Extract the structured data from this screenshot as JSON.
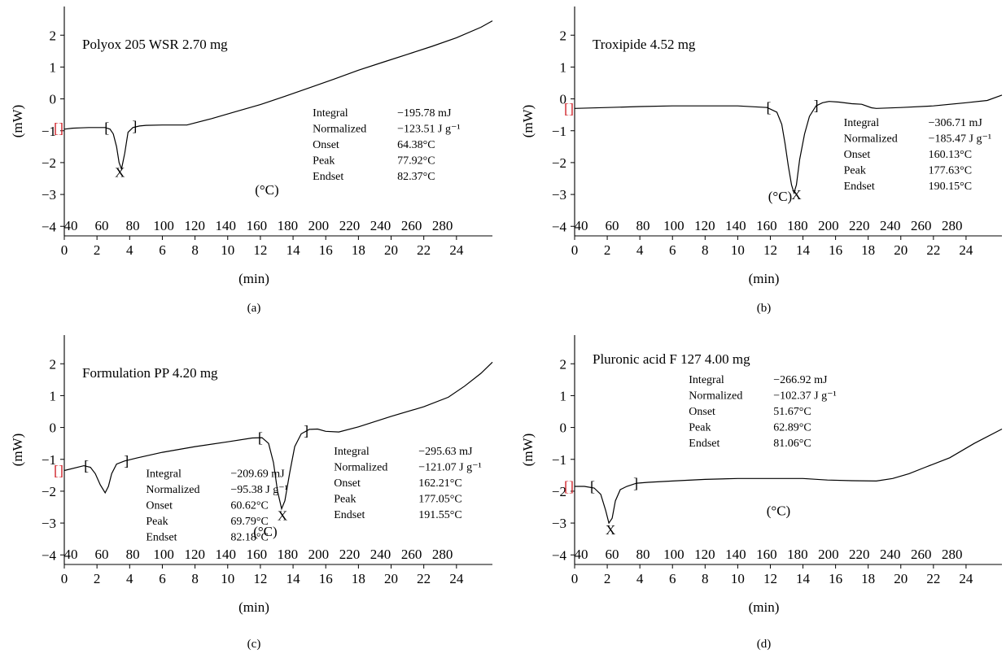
{
  "figure": {
    "x_axis_label": "(min)",
    "y_axis_label": "(mW)",
    "temp_axis_label": "(°C)",
    "peak_marker": "X"
  },
  "chart_data": [
    {
      "panel": "a",
      "caption": "(a)",
      "type": "line",
      "title": "Polyox 205 WSR  2.70 mg",
      "xlabel": "(min)",
      "ylabel": "(mW)",
      "xlim": [
        0,
        26.2
      ],
      "ylim": [
        -4.3,
        2.9
      ],
      "x_ticks": [
        "0",
        "2",
        "4",
        "6",
        "8",
        "10",
        "12",
        "14",
        "16",
        "18",
        "20",
        "22",
        "24"
      ],
      "y_ticks": [
        "2",
        "1",
        "0",
        "−1",
        "−2",
        "−3",
        "−4"
      ],
      "temp_ticks": [
        "40",
        "60",
        "80",
        "100",
        "120",
        "140",
        "160",
        "180",
        "200",
        "220",
        "240",
        "260",
        "280"
      ],
      "temp_label": "(°C)",
      "series": [
        {
          "x": [
            0,
            0.5,
            1,
            1.5,
            2,
            2.5,
            2.8,
            3,
            3.2,
            3.35,
            3.5,
            3.7,
            3.9,
            4.2,
            4.6,
            5,
            6,
            7.5,
            9,
            10.5,
            12,
            13.5,
            15,
            16.5,
            18,
            19.5,
            21,
            22.5,
            24,
            25.5,
            26.2
          ],
          "y": [
            -0.95,
            -0.92,
            -0.91,
            -0.9,
            -0.9,
            -0.9,
            -0.95,
            -1.1,
            -1.5,
            -2.0,
            -2.2,
            -1.7,
            -1.05,
            -0.9,
            -0.85,
            -0.83,
            -0.82,
            -0.82,
            -0.62,
            -0.4,
            -0.18,
            0.08,
            0.35,
            0.62,
            0.9,
            1.15,
            1.4,
            1.65,
            1.92,
            2.25,
            2.45
          ]
        }
      ],
      "integration_brackets": [
        {
          "x": 2.6,
          "y": -0.9,
          "glyph": "["
        },
        {
          "x": 4.3,
          "y": -0.85,
          "glyph": "]"
        }
      ],
      "peak_label_pos": {
        "x": 3.4,
        "y": -2.25
      },
      "temp_label_pos": {
        "x": 12.4,
        "y": -2.85
      },
      "start_marker": {
        "x": 0,
        "y": -0.92
      },
      "stats_pos": {
        "x": 15.2,
        "y": -0.55
      },
      "stats": [
        {
          "label": "Integral",
          "value": "−195.78 mJ"
        },
        {
          "label": "Normalized",
          "value": "−123.51 J g⁻¹"
        },
        {
          "label": "Onset",
          "value": "64.38°C"
        },
        {
          "label": "Peak",
          "value": "77.92°C"
        },
        {
          "label": "Endset",
          "value": "82.37°C"
        }
      ]
    },
    {
      "panel": "b",
      "caption": "(b)",
      "type": "line",
      "title": "Troxipide  4.52 mg",
      "xlabel": "(min)",
      "ylabel": "(mW)",
      "xlim": [
        0,
        26.2
      ],
      "ylim": [
        -4.3,
        2.9
      ],
      "x_ticks": [
        "0",
        "2",
        "4",
        "6",
        "8",
        "10",
        "12",
        "14",
        "16",
        "18",
        "20",
        "22",
        "24"
      ],
      "y_ticks": [
        "2",
        "1",
        "0",
        "−1",
        "−2",
        "−3",
        "−4"
      ],
      "temp_ticks": [
        "40",
        "60",
        "80",
        "100",
        "120",
        "140",
        "160",
        "180",
        "200",
        "220",
        "240",
        "260",
        "280"
      ],
      "temp_label": "(°C)",
      "series": [
        {
          "x": [
            0,
            2,
            4,
            6,
            8,
            10,
            11.8,
            12.4,
            12.7,
            12.9,
            13.1,
            13.3,
            13.45,
            13.6,
            13.8,
            14.1,
            14.4,
            14.8,
            15.2,
            15.6,
            16.2,
            17,
            17.6,
            18.2,
            18.5,
            20,
            22,
            24,
            25.3,
            26.2
          ],
          "y": [
            -0.3,
            -0.27,
            -0.24,
            -0.22,
            -0.22,
            -0.22,
            -0.27,
            -0.42,
            -0.8,
            -1.4,
            -2.1,
            -2.7,
            -2.95,
            -2.7,
            -1.9,
            -1.1,
            -0.55,
            -0.22,
            -0.12,
            -0.08,
            -0.1,
            -0.15,
            -0.17,
            -0.28,
            -0.3,
            -0.27,
            -0.22,
            -0.12,
            -0.05,
            0.12
          ]
        }
      ],
      "integration_brackets": [
        {
          "x": 11.9,
          "y": -0.27,
          "glyph": "["
        },
        {
          "x": 14.8,
          "y": -0.2,
          "glyph": "]"
        }
      ],
      "peak_label_pos": {
        "x": 13.6,
        "y": -2.95
      },
      "temp_label_pos": {
        "x": 12.6,
        "y": -3.05
      },
      "start_marker": {
        "x": 0,
        "y": -0.3
      },
      "stats_pos": {
        "x": 16.5,
        "y": -0.85
      },
      "stats": [
        {
          "label": "Integral",
          "value": "−306.71 mJ"
        },
        {
          "label": "Normalized",
          "value": "−185.47 J g⁻¹"
        },
        {
          "label": "Onset",
          "value": "160.13°C"
        },
        {
          "label": "Peak",
          "value": "177.63°C"
        },
        {
          "label": "Endset",
          "value": "190.15°C"
        }
      ]
    },
    {
      "panel": "c",
      "caption": "(c)",
      "type": "line",
      "title": "Formulation PP 4.20 mg",
      "xlabel": "(min)",
      "ylabel": "(mW)",
      "xlim": [
        0,
        26.2
      ],
      "ylim": [
        -4.3,
        2.9
      ],
      "x_ticks": [
        "0",
        "2",
        "4",
        "6",
        "8",
        "10",
        "12",
        "14",
        "16",
        "18",
        "20",
        "22",
        "24"
      ],
      "y_ticks": [
        "2",
        "1",
        "0",
        "−1",
        "−2",
        "−3",
        "−4"
      ],
      "temp_ticks": [
        "40",
        "60",
        "80",
        "100",
        "120",
        "140",
        "160",
        "180",
        "200",
        "220",
        "240",
        "260",
        "280"
      ],
      "temp_label": "(°C)",
      "series": [
        {
          "x": [
            0,
            1.2,
            1.6,
            1.9,
            2.2,
            2.5,
            2.7,
            2.9,
            3.2,
            3.7,
            4.5,
            6,
            8,
            10,
            11.5,
            12.1,
            12.5,
            12.8,
            13.05,
            13.3,
            13.5,
            13.8,
            14.1,
            14.5,
            15,
            15.5,
            16,
            16.8,
            18,
            20,
            22,
            23.5,
            24.5,
            25.5,
            26.2
          ],
          "y": [
            -1.35,
            -1.2,
            -1.25,
            -1.45,
            -1.8,
            -2.05,
            -1.85,
            -1.45,
            -1.15,
            -1.05,
            -0.95,
            -0.78,
            -0.6,
            -0.45,
            -0.33,
            -0.32,
            -0.5,
            -1.1,
            -2.0,
            -2.55,
            -2.3,
            -1.4,
            -0.6,
            -0.2,
            -0.06,
            -0.05,
            -0.12,
            -0.14,
            0.02,
            0.35,
            0.65,
            0.95,
            1.3,
            1.7,
            2.05
          ]
        }
      ],
      "integration_brackets": [
        {
          "x": 1.35,
          "y": -1.2,
          "glyph": "["
        },
        {
          "x": 3.8,
          "y": -1.05,
          "glyph": "]"
        },
        {
          "x": 12.0,
          "y": -0.32,
          "glyph": "["
        },
        {
          "x": 14.8,
          "y": -0.1,
          "glyph": "]"
        }
      ],
      "peak_label_pos": {
        "x": 13.35,
        "y": -2.7
      },
      "temp_label_pos": {
        "x": 12.3,
        "y": -3.25
      },
      "start_marker": {
        "x": 0,
        "y": -1.35
      },
      "stats_pos": {
        "x": 5.0,
        "y": -1.55
      },
      "stats": [
        {
          "label": "Integral",
          "value": "−209.69 mJ"
        },
        {
          "label": "Normalized",
          "value": "−95.38 J g⁻¹"
        },
        {
          "label": "Onset",
          "value": "60.62°C"
        },
        {
          "label": "Peak",
          "value": "69.79°C"
        },
        {
          "label": "Endset",
          "value": "82.18°C"
        }
      ],
      "stats_pos_2": {
        "x": 16.5,
        "y": -0.85
      },
      "stats_2": [
        {
          "label": "Integral",
          "value": "−295.63 mJ"
        },
        {
          "label": "Normalized",
          "value": "−121.07 J g⁻¹"
        },
        {
          "label": "Onset",
          "value": "162.21°C"
        },
        {
          "label": "Peak",
          "value": "177.05°C"
        },
        {
          "label": "Endset",
          "value": "191.55°C"
        }
      ]
    },
    {
      "panel": "d",
      "caption": "(d)",
      "type": "line",
      "title": "Pluronic acid F 127  4.00 mg",
      "xlabel": "(min)",
      "ylabel": "(mW)",
      "xlim": [
        0,
        26.2
      ],
      "ylim": [
        -4.3,
        2.9
      ],
      "x_ticks": [
        "0",
        "2",
        "4",
        "6",
        "8",
        "10",
        "12",
        "14",
        "16",
        "18",
        "20",
        "22",
        "24"
      ],
      "y_ticks": [
        "2",
        "1",
        "0",
        "−1",
        "−2",
        "−3",
        "−4"
      ],
      "temp_ticks": [
        "40",
        "60",
        "80",
        "100",
        "120",
        "140",
        "160",
        "180",
        "200",
        "220",
        "240",
        "260",
        "280"
      ],
      "temp_label": "(°C)",
      "series": [
        {
          "x": [
            0,
            0.6,
            1.2,
            1.6,
            1.9,
            2.1,
            2.3,
            2.5,
            2.8,
            3.2,
            3.8,
            4.5,
            6,
            8,
            10,
            12,
            14,
            15.5,
            17,
            18.5,
            19.5,
            20.5,
            21.5,
            23,
            24.5,
            26.2
          ],
          "y": [
            -1.85,
            -1.85,
            -1.9,
            -2.1,
            -2.6,
            -3.0,
            -2.85,
            -2.3,
            -1.95,
            -1.85,
            -1.75,
            -1.72,
            -1.68,
            -1.63,
            -1.6,
            -1.6,
            -1.6,
            -1.65,
            -1.67,
            -1.68,
            -1.6,
            -1.45,
            -1.25,
            -0.95,
            -0.5,
            -0.05
          ]
        }
      ],
      "integration_brackets": [
        {
          "x": 1.1,
          "y": -1.85,
          "glyph": "["
        },
        {
          "x": 3.75,
          "y": -1.75,
          "glyph": "]"
        }
      ],
      "peak_label_pos": {
        "x": 2.2,
        "y": -3.15
      },
      "temp_label_pos": {
        "x": 12.5,
        "y": -2.6
      },
      "start_marker": {
        "x": 0,
        "y": -1.85
      },
      "stats_pos": {
        "x": 7.0,
        "y": 1.4
      },
      "stats": [
        {
          "label": "Integral",
          "value": "−266.92 mJ"
        },
        {
          "label": "Normalized",
          "value": "−102.37 J g⁻¹"
        },
        {
          "label": "Onset",
          "value": "51.67°C"
        },
        {
          "label": "Peak",
          "value": "62.89°C"
        },
        {
          "label": "Endset",
          "value": "81.06°C"
        }
      ]
    }
  ]
}
